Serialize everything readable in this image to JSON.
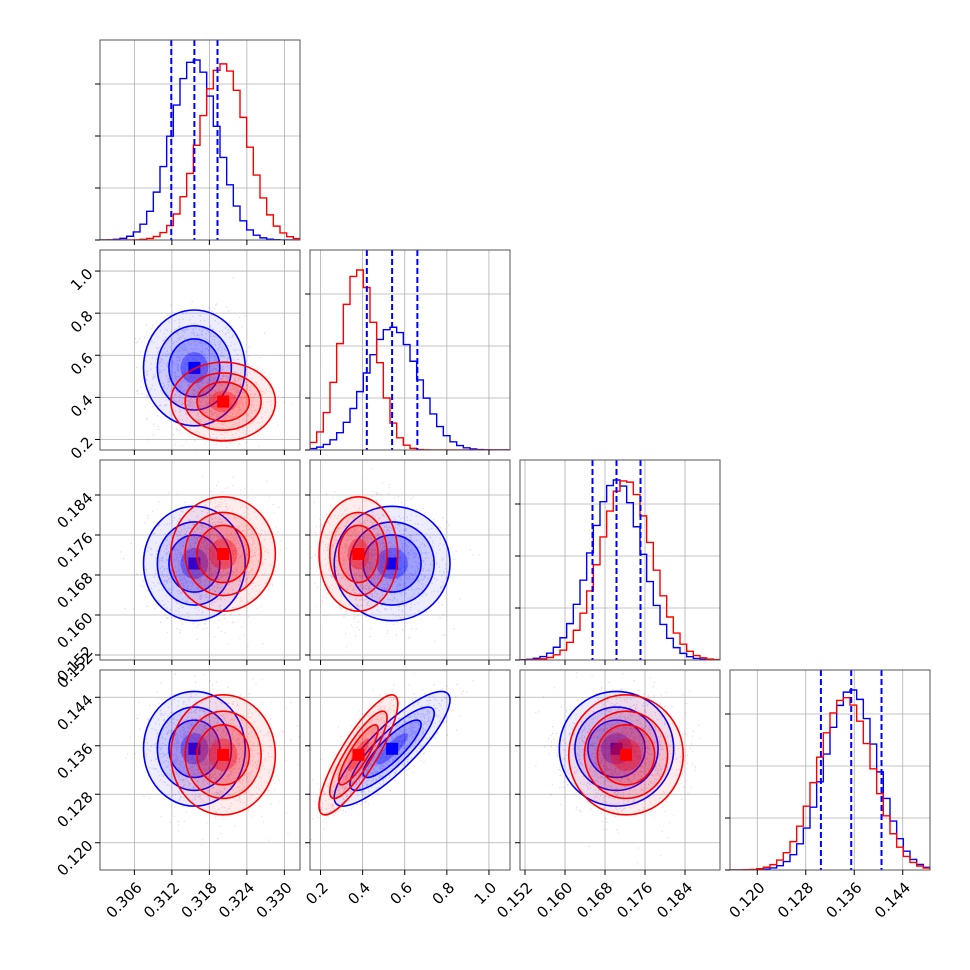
{
  "chart_data": {
    "type": "corner",
    "parameters": [
      {
        "ticks": [
          0.306,
          0.312,
          0.318,
          0.324,
          0.33
        ],
        "tick_labels": [
          "0.306",
          "0.312",
          "0.318",
          "0.324",
          "0.330"
        ],
        "range": [
          0.3005,
          0.3325
        ]
      },
      {
        "ticks": [
          0.2,
          0.4,
          0.6,
          0.8,
          1.0
        ],
        "tick_labels": [
          "0.2",
          "0.4",
          "0.6",
          "0.8",
          "1.0"
        ],
        "range": [
          0.15,
          1.1
        ]
      },
      {
        "ticks": [
          0.152,
          0.16,
          0.168,
          0.176,
          0.184
        ],
        "tick_labels": [
          "0.152",
          "0.160",
          "0.168",
          "0.176",
          "0.184"
        ],
        "range": [
          0.151,
          0.191
        ]
      },
      {
        "ticks": [
          0.12,
          0.128,
          0.136,
          0.144,
          0.152
        ],
        "tick_labels": [
          "0.120",
          "0.128",
          "0.136",
          "0.144",
          "0.152"
        ],
        "range": [
          0.1155,
          0.1485
        ]
      }
    ],
    "bottom_tick_labels": [
      [
        "0.306",
        "0.312",
        "0.318",
        "0.324",
        "0.330"
      ],
      [
        "0.2",
        "0.4",
        "0.6",
        "0.8",
        "1.0"
      ],
      [
        "0.152",
        "0.160",
        "0.168",
        "0.176",
        "0.184"
      ],
      [
        "0.120",
        "0.128",
        "0.136",
        "0.144"
      ]
    ],
    "left_tick_labels": [
      [],
      [
        "0.2",
        "0.4",
        "0.6",
        "0.8",
        "1.0"
      ],
      [
        "0.152",
        "0.160",
        "0.168",
        "0.176",
        "0.184"
      ],
      [
        "0.120",
        "0.128",
        "0.136",
        "0.144",
        "0.152"
      ]
    ],
    "series": [
      {
        "color": "#0000ff",
        "mean": [
          0.3156,
          0.54,
          0.1703,
          0.1355
        ],
        "std": [
          0.0037,
          0.125,
          0.0052,
          0.0043
        ],
        "correlations": [
          [
            1,
            2,
            0.0
          ],
          [
            1,
            3,
            0.85
          ],
          [
            0,
            2,
            0.0
          ],
          [
            0,
            3,
            0.0
          ],
          [
            2,
            3,
            0.0
          ]
        ]
      },
      {
        "color": "#ff0000",
        "mean": [
          0.3202,
          0.38,
          0.1722,
          0.1345
        ],
        "std": [
          0.0038,
          0.085,
          0.0052,
          0.0045
        ],
        "correlations": [
          [
            1,
            2,
            0.0
          ],
          [
            1,
            3,
            0.85
          ],
          [
            0,
            2,
            0.0
          ],
          [
            0,
            3,
            0.0
          ],
          [
            2,
            3,
            0.0
          ]
        ]
      }
    ],
    "quantile_lines": {
      "color": "#0000ff",
      "values": [
        [
          0.3119,
          0.3156,
          0.3193
        ],
        [
          0.42,
          0.54,
          0.66
        ],
        [
          0.1655,
          0.1703,
          0.1751
        ],
        [
          0.1305,
          0.1355,
          0.1405
        ]
      ]
    },
    "grid": true
  }
}
